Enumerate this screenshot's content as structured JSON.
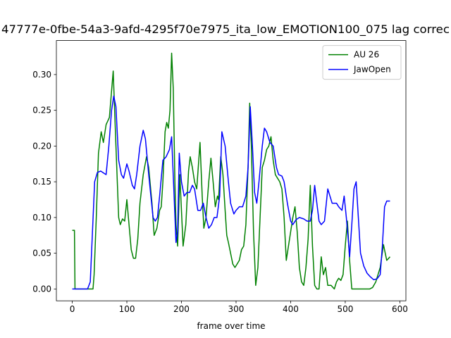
{
  "chart_data": {
    "type": "line",
    "title": "47777e-0fbe-54a3-9afd-4295f70e7975_ita_low_EMOTION100_075  lag correc",
    "x_label": "frame over time",
    "xlim": [
      -29.1,
      611.1
    ],
    "xticks": [
      0,
      100,
      200,
      300,
      400,
      500,
      600
    ],
    "ylim": [
      -0.0166,
      0.3476
    ],
    "yticks": [
      {
        "value": 0,
        "label": "0.00"
      },
      {
        "value": 0.05,
        "label": "0.05"
      },
      {
        "value": 0.1,
        "label": "0.10"
      },
      {
        "value": 0.15,
        "label": "0.15"
      },
      {
        "value": 0.2,
        "label": "0.20"
      },
      {
        "value": 0.25,
        "label": "0.25"
      },
      {
        "value": 0.3,
        "label": "0.30"
      }
    ],
    "legend": "upper right",
    "series": [
      {
        "name": "AU 26",
        "color": "#008000",
        "x": [
          0,
          4,
          5,
          38,
          40,
          44,
          48,
          53,
          57,
          62,
          68,
          75,
          80,
          85,
          88,
          92,
          96,
          100,
          104,
          108,
          112,
          116,
          120,
          124,
          130,
          136,
          140,
          146,
          150,
          155,
          160,
          163,
          166,
          170,
          173,
          176,
          179,
          182,
          185,
          188,
          190,
          193,
          197,
          203,
          208,
          213,
          216,
          220,
          224,
          228,
          234,
          238,
          241,
          245,
          250,
          254,
          258,
          262,
          266,
          268,
          272,
          276,
          280,
          283,
          286,
          290,
          294,
          298,
          302,
          306,
          310,
          314,
          318,
          322,
          325,
          328,
          332,
          336,
          340,
          344,
          348,
          352,
          356,
          360,
          364,
          368,
          372,
          376,
          380,
          384,
          388,
          392,
          396,
          400,
          404,
          408,
          412,
          416,
          420,
          424,
          428,
          432,
          436,
          440,
          444,
          448,
          452,
          456,
          460,
          464,
          468,
          474,
          480,
          484,
          488,
          492,
          496,
          500,
          504,
          508,
          512,
          520,
          545,
          550,
          556,
          564,
          570,
          576,
          582
        ],
        "values": [
          0.082,
          0.082,
          0,
          0,
          0.02,
          0.1,
          0.19,
          0.22,
          0.205,
          0.23,
          0.24,
          0.305,
          0.2,
          0.1,
          0.09,
          0.098,
          0.095,
          0.125,
          0.09,
          0.055,
          0.043,
          0.043,
          0.07,
          0.12,
          0.16,
          0.185,
          0.17,
          0.12,
          0.075,
          0.085,
          0.11,
          0.115,
          0.15,
          0.22,
          0.233,
          0.225,
          0.25,
          0.33,
          0.28,
          0.15,
          0.09,
          0.06,
          0.16,
          0.06,
          0.09,
          0.165,
          0.185,
          0.17,
          0.15,
          0.14,
          0.205,
          0.13,
          0.085,
          0.1,
          0.15,
          0.183,
          0.15,
          0.115,
          0.13,
          0.125,
          0.185,
          0.16,
          0.11,
          0.075,
          0.065,
          0.05,
          0.035,
          0.03,
          0.035,
          0.04,
          0.055,
          0.06,
          0.09,
          0.17,
          0.26,
          0.2,
          0.08,
          0.005,
          0.03,
          0.1,
          0.17,
          0.18,
          0.195,
          0.2,
          0.213,
          0.18,
          0.16,
          0.155,
          0.15,
          0.14,
          0.1,
          0.04,
          0.06,
          0.08,
          0.1,
          0.115,
          0.08,
          0.03,
          0.01,
          0.005,
          0.03,
          0.07,
          0.145,
          0.06,
          0.005,
          0,
          0,
          0.045,
          0.02,
          0.03,
          0.005,
          0.005,
          0,
          0.01,
          0.015,
          0.012,
          0.02,
          0.06,
          0.095,
          0.04,
          0,
          0,
          0,
          0.002,
          0.01,
          0.03,
          0.062,
          0.04,
          0.045
        ]
      },
      {
        "name": "JawOpen",
        "color": "#0000ff",
        "x": [
          0,
          28,
          33,
          37,
          41,
          46,
          52,
          58,
          62,
          67,
          72,
          76,
          80,
          85,
          90,
          94,
          100,
          104,
          110,
          114,
          118,
          124,
          130,
          134,
          140,
          144,
          148,
          152,
          156,
          160,
          166,
          172,
          178,
          182,
          186,
          190,
          193,
          196,
          200,
          205,
          210,
          215,
          220,
          224,
          230,
          235,
          240,
          245,
          250,
          255,
          260,
          265,
          270,
          274,
          280,
          286,
          290,
          296,
          300,
          306,
          312,
          318,
          322,
          326,
          330,
          334,
          338,
          342,
          348,
          352,
          356,
          362,
          368,
          374,
          378,
          384,
          388,
          394,
          400,
          404,
          410,
          416,
          424,
          430,
          436,
          440,
          444,
          448,
          452,
          456,
          462,
          468,
          472,
          476,
          480,
          484,
          488,
          494,
          498,
          502,
          506,
          508,
          512,
          516,
          520,
          524,
          528,
          534,
          540,
          546,
          552,
          558,
          564,
          568,
          572,
          576,
          582
        ],
        "values": [
          0,
          0,
          0.01,
          0.08,
          0.15,
          0.163,
          0.165,
          0.162,
          0.16,
          0.2,
          0.25,
          0.27,
          0.255,
          0.18,
          0.16,
          0.155,
          0.175,
          0.165,
          0.145,
          0.14,
          0.16,
          0.2,
          0.222,
          0.21,
          0.16,
          0.13,
          0.1,
          0.095,
          0.1,
          0.13,
          0.18,
          0.185,
          0.195,
          0.213,
          0.14,
          0.065,
          0.08,
          0.19,
          0.15,
          0.13,
          0.135,
          0.135,
          0.145,
          0.14,
          0.11,
          0.11,
          0.12,
          0.1,
          0.085,
          0.09,
          0.1,
          0.1,
          0.13,
          0.22,
          0.2,
          0.15,
          0.12,
          0.105,
          0.11,
          0.115,
          0.115,
          0.13,
          0.17,
          0.255,
          0.2,
          0.135,
          0.12,
          0.15,
          0.2,
          0.225,
          0.22,
          0.205,
          0.2,
          0.17,
          0.16,
          0.158,
          0.15,
          0.12,
          0.095,
          0.09,
          0.097,
          0.1,
          0.098,
          0.095,
          0.095,
          0.11,
          0.145,
          0.12,
          0.095,
          0.09,
          0.095,
          0.14,
          0.13,
          0.12,
          0.12,
          0.12,
          0.115,
          0.11,
          0.13,
          0.1,
          0.065,
          0.045,
          0.09,
          0.14,
          0.15,
          0.1,
          0.05,
          0.032,
          0.022,
          0.017,
          0.013,
          0.014,
          0.02,
          0.06,
          0.115,
          0.123,
          0.123
        ]
      }
    ]
  }
}
